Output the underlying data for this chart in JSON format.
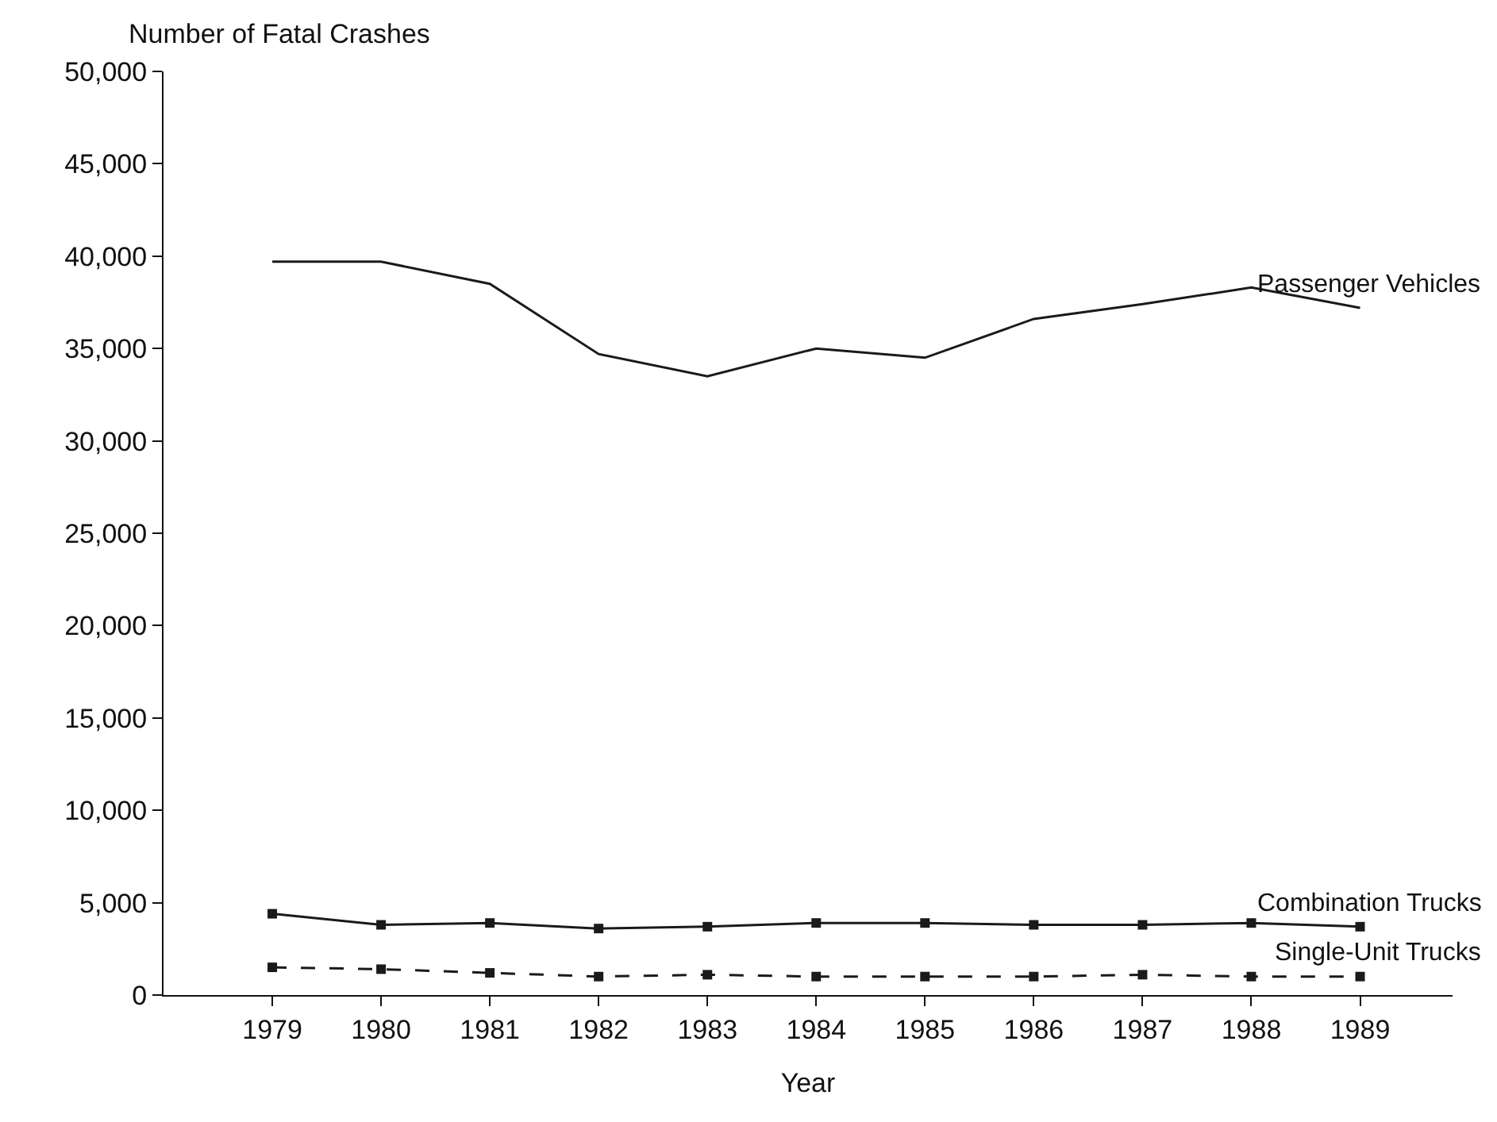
{
  "chart_data": {
    "type": "line",
    "ylabel": "Number of Fatal Crashes",
    "xlabel": "Year",
    "x": [
      1979,
      1980,
      1981,
      1982,
      1983,
      1984,
      1985,
      1986,
      1987,
      1988,
      1989
    ],
    "series": [
      {
        "name": "Passenger Vehicles",
        "color": "#1a1a1a",
        "marker": "none",
        "line_style": "solid",
        "values": [
          39700,
          39700,
          38500,
          34700,
          33500,
          35000,
          34500,
          36600,
          37400,
          38300,
          37200
        ]
      },
      {
        "name": "Combination Trucks",
        "color": "#1a1a1a",
        "marker": "square",
        "line_style": "solid",
        "values": [
          4400,
          3800,
          3900,
          3600,
          3700,
          3900,
          3900,
          3800,
          3800,
          3900,
          3700
        ]
      },
      {
        "name": "Single-Unit Trucks",
        "color": "#1a1a1a",
        "marker": "square",
        "line_style": "dashed",
        "values": [
          1500,
          1400,
          1200,
          1000,
          1100,
          1000,
          1000,
          1000,
          1100,
          1000,
          1000
        ]
      }
    ],
    "xlim": [
      1978,
      1989.85
    ],
    "xticks": [
      1979,
      1980,
      1981,
      1982,
      1983,
      1984,
      1985,
      1986,
      1987,
      1988,
      1989
    ],
    "ylim": [
      0,
      50000
    ],
    "yticks": [
      0,
      {
        "value": 5000,
        "label": "5,000"
      },
      {
        "value": 10000,
        "label": "10,000"
      },
      {
        "value": 15000,
        "label": "15,000"
      },
      {
        "value": 20000,
        "label": "20,000"
      },
      {
        "value": 25000,
        "label": "25,000"
      },
      {
        "value": 30000,
        "label": "30,000"
      },
      {
        "value": 35000,
        "label": "35,000"
      },
      {
        "value": 40000,
        "label": "40,000"
      },
      {
        "value": 45000,
        "label": "45,000"
      },
      {
        "value": 50000,
        "label": "50,000"
      }
    ],
    "grid": false,
    "legend": false
  }
}
